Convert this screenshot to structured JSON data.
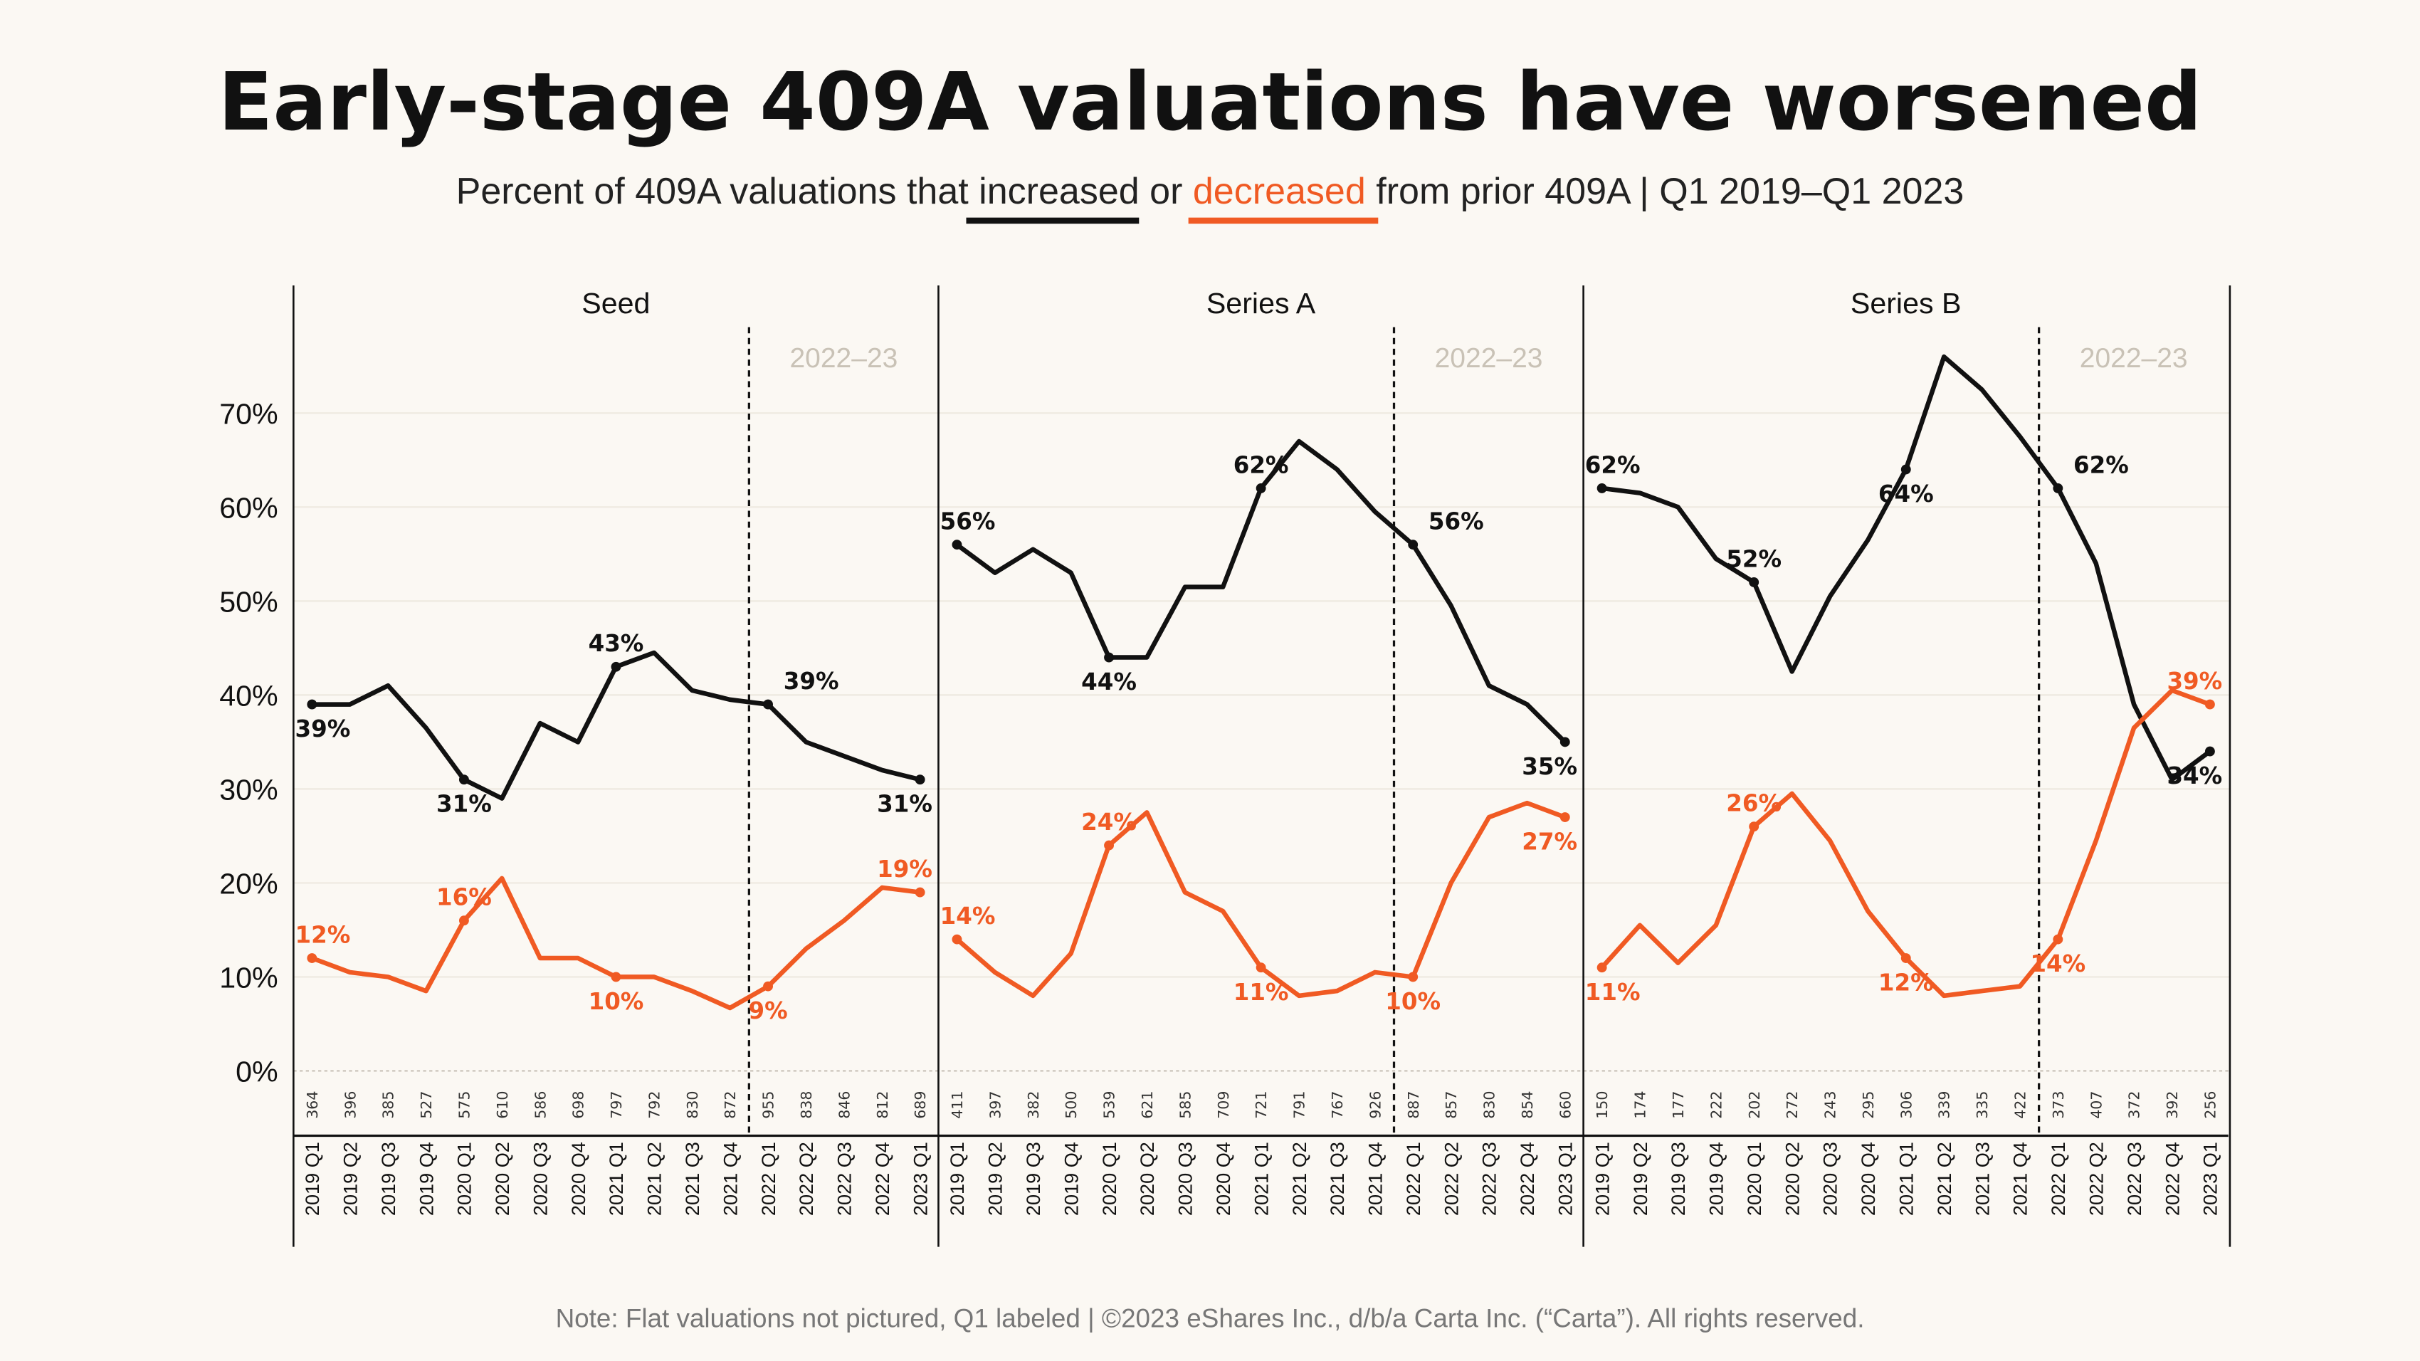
{
  "colors": {
    "increased": "#111111",
    "decreased": "#f05a23",
    "background": "#fbf8f3"
  },
  "chart_data": {
    "type": "line",
    "title": "Early-stage 409A valuations have worsened",
    "subtitle": {
      "pre": "Percent of 409A valuations that",
      "increased": "increased",
      "or": "or",
      "decreased": "decreased",
      "post": "from prior 409A  |  Q1 2019–Q1 2023"
    },
    "yticks": [
      "0%",
      "10%",
      "20%",
      "30%",
      "40%",
      "50%",
      "60%",
      "70%"
    ],
    "ylim": [
      0,
      80
    ],
    "grid": true,
    "period_label": "2022–23",
    "categories": [
      "2019 Q1",
      "2019 Q2",
      "2019 Q3",
      "2019 Q4",
      "2020 Q1",
      "2020 Q2",
      "2020 Q3",
      "2020 Q4",
      "2021 Q1",
      "2021 Q2",
      "2021 Q3",
      "2021 Q4",
      "2022 Q1",
      "2022 Q2",
      "2022 Q3",
      "2022 Q4",
      "2023 Q1"
    ],
    "panels": [
      {
        "name": "Seed",
        "counts": [
          "364",
          "396",
          "385",
          "527",
          "575",
          "610",
          "586",
          "698",
          "797",
          "792",
          "830",
          "872",
          "955",
          "838",
          "846",
          "812",
          "689"
        ],
        "series": [
          {
            "key": "increased",
            "values": [
              39,
              39,
              41,
              36.5,
              31,
              29,
              37,
              35,
              43,
              44.5,
              40.5,
              39.5,
              39,
              35,
              33.5,
              32,
              31
            ]
          },
          {
            "key": "decreased",
            "values": [
              12,
              10.5,
              10,
              8.5,
              16,
              20.5,
              12,
              12,
              10,
              10,
              8.5,
              6.7,
              9,
              13,
              16,
              19.5,
              19
            ]
          }
        ]
      },
      {
        "name": "Series A",
        "counts": [
          "411",
          "397",
          "382",
          "500",
          "539",
          "621",
          "585",
          "709",
          "721",
          "791",
          "767",
          "926",
          "887",
          "857",
          "830",
          "854",
          "660"
        ],
        "series": [
          {
            "key": "increased",
            "values": [
              56,
              53,
              55.5,
              53,
              44,
              44,
              51.5,
              51.5,
              62,
              67,
              64,
              59.5,
              56,
              49.5,
              41,
              39,
              35
            ]
          },
          {
            "key": "decreased",
            "values": [
              14,
              10.5,
              8,
              12.5,
              24,
              27.5,
              19,
              17,
              11,
              8,
              8.5,
              10.5,
              10,
              20,
              27,
              28.5,
              27
            ]
          }
        ]
      },
      {
        "name": "Series B",
        "counts": [
          "150",
          "174",
          "177",
          "222",
          "202",
          "272",
          "243",
          "295",
          "306",
          "339",
          "335",
          "422",
          "373",
          "407",
          "372",
          "392",
          "256"
        ],
        "series": [
          {
            "key": "increased",
            "values": [
              62,
              61.5,
              60,
              54.5,
              52,
              42.5,
              50.5,
              56.5,
              64,
              76,
              72.5,
              67.5,
              62,
              54,
              39,
              31,
              34
            ]
          },
          {
            "key": "decreased",
            "values": [
              11,
              15.5,
              11.5,
              15.5,
              26,
              29.5,
              24.5,
              17,
              12,
              8,
              8.5,
              9,
              14,
              24.5,
              36.5,
              40.5,
              39
            ]
          }
        ]
      }
    ]
  },
  "footer": "Note: Flat valuations not pictured, Q1 labeled  |  ©2023 eShares Inc., d/b/a Carta Inc. (“Carta”). All rights reserved."
}
